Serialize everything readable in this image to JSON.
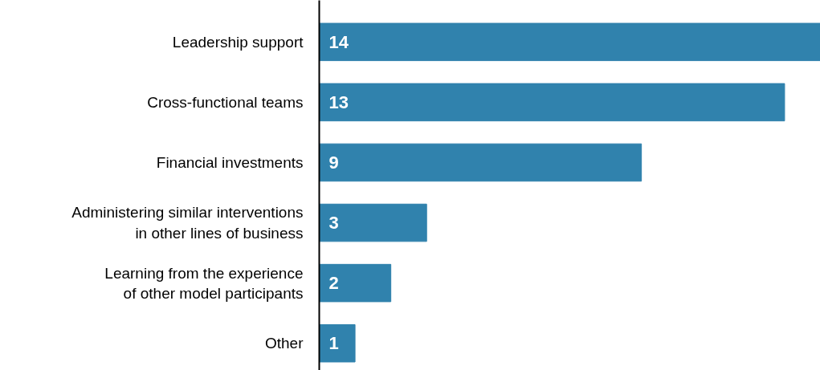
{
  "chart_data": {
    "type": "bar",
    "orientation": "horizontal",
    "categories": [
      "Leadership support",
      "Cross-functional teams",
      "Financial investments",
      "Administering similar interventions\nin other lines of business",
      "Learning from the experience\nof other model participants",
      "Other"
    ],
    "values": [
      14,
      13,
      9,
      3,
      2,
      1
    ],
    "color": "#3082ad",
    "data_labels": true,
    "xlim": [
      0,
      14
    ],
    "tick_labels": "y",
    "grid": false
  }
}
